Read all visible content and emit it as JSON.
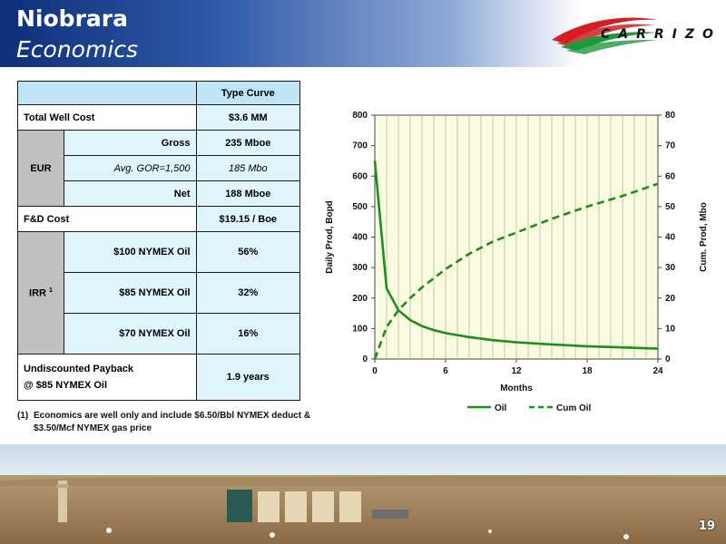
{
  "header": {
    "title_line1": "Niobrara",
    "title_line2": "Economics",
    "logo_text": "CARRIZO"
  },
  "table": {
    "col_header": "Type Curve",
    "total_well_cost_label": "Total Well Cost",
    "total_well_cost_value": "$3.6 MM",
    "eur_label": "EUR",
    "eur_rows": [
      {
        "label": "Gross",
        "value": "235 Mboe"
      },
      {
        "label": "Avg. GOR=1,500",
        "value": "185 Mbo"
      },
      {
        "label": "Net",
        "value": "188 Mboe"
      }
    ],
    "fd_cost_label": "F&D Cost",
    "fd_cost_value": "$19.15 / Boe",
    "irr_label": "IRR",
    "irr_superscript": "1",
    "irr_rows": [
      {
        "label": "$100 NYMEX Oil",
        "value": "56%"
      },
      {
        "label": "$85 NYMEX Oil",
        "value": "32%"
      },
      {
        "label": "$70 NYMEX Oil",
        "value": "16%"
      }
    ],
    "payback_label_line1": "Undiscounted Payback",
    "payback_label_line2": "@ $85 NYMEX Oil",
    "payback_value": "1.9 years"
  },
  "footnote": {
    "number": "(1)",
    "text": "Economics are well only and include $6.50/Bbl NYMEX deduct & $3.50/Mcf NYMEX gas price"
  },
  "chart_data": {
    "type": "line",
    "xlabel": "Months",
    "ylabel": "Daily Prod, Bopd",
    "y2label": "Cum. Prod, Mbo",
    "xlim": [
      0,
      24
    ],
    "ylim": [
      0,
      800
    ],
    "y2lim": [
      0,
      80
    ],
    "x_ticks": [
      0,
      6,
      12,
      18,
      24
    ],
    "y_ticks": [
      0,
      100,
      200,
      300,
      400,
      500,
      600,
      700,
      800
    ],
    "y2_ticks": [
      0,
      10,
      20,
      30,
      40,
      50,
      60,
      70,
      80
    ],
    "grid": "vertical",
    "legend_position": "bottom",
    "series": [
      {
        "name": "Oil",
        "axis": "left",
        "style": "solid",
        "color": "#1a8f1a",
        "x": [
          0,
          1,
          2,
          3,
          4,
          5,
          6,
          8,
          10,
          12,
          15,
          18,
          21,
          24
        ],
        "y": [
          650,
          232,
          160,
          128,
          108,
          95,
          85,
          72,
          62,
          55,
          48,
          42,
          38,
          34
        ]
      },
      {
        "name": "Cum Oil",
        "axis": "right",
        "style": "dashed",
        "color": "#1a8f1a",
        "x": [
          0,
          1,
          2,
          3,
          4,
          5,
          6,
          8,
          10,
          12,
          15,
          18,
          21,
          24
        ],
        "y": [
          0,
          10.5,
          16,
          20,
          23.5,
          26.5,
          29.5,
          34.5,
          38.5,
          41.5,
          46,
          50,
          53.5,
          57.5
        ]
      }
    ]
  },
  "page_number": "19"
}
